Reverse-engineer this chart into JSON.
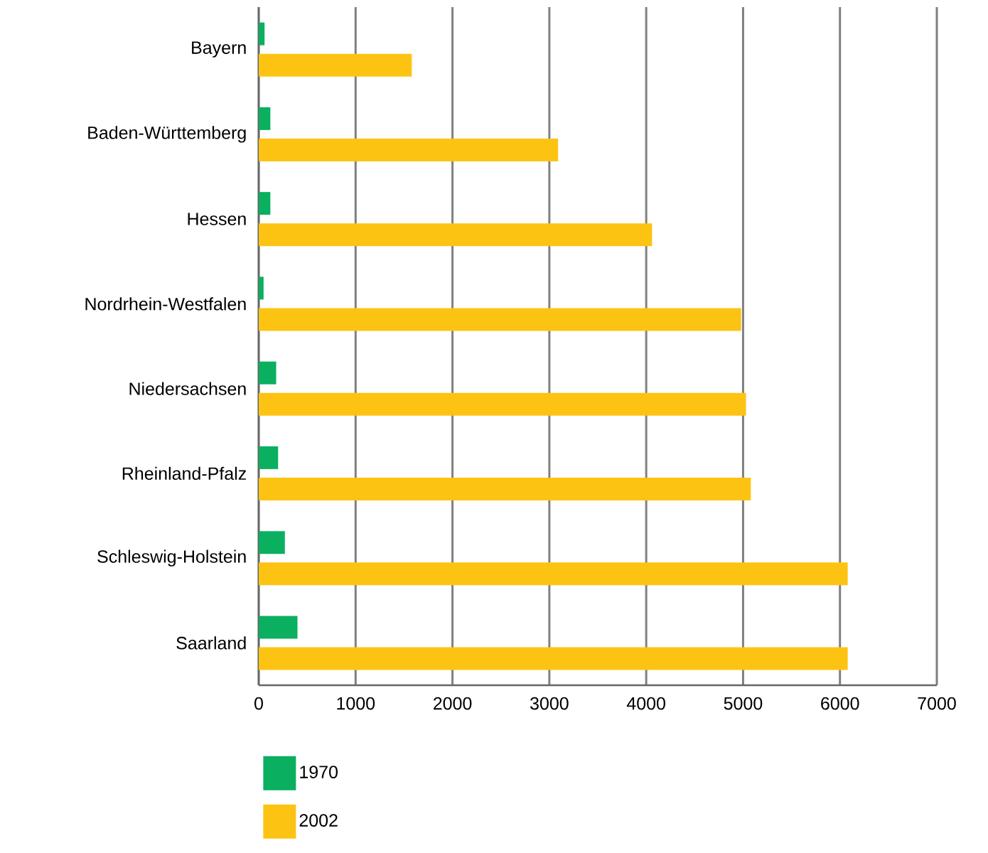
{
  "chart_data": {
    "type": "bar",
    "orientation": "horizontal",
    "categories": [
      "Bayern",
      "Baden-Württemberg",
      "Hessen",
      "Nordrhein-Westfalen",
      "Niedersachsen",
      "Rheinland-Pfalz",
      "Schleswig-Holstein",
      "Saarland"
    ],
    "series": [
      {
        "name": "1970",
        "color": "#0aaf5f",
        "values": [
          60,
          120,
          120,
          50,
          180,
          200,
          270,
          400
        ]
      },
      {
        "name": "2002",
        "color": "#fdc312",
        "values": [
          1580,
          3090,
          4060,
          4980,
          5030,
          5080,
          6080,
          6080
        ]
      }
    ],
    "xlim": [
      0,
      7000
    ],
    "xticks": [
      0,
      1000,
      2000,
      3000,
      4000,
      5000,
      6000,
      7000
    ],
    "grid": "x",
    "legend": "bottom left"
  }
}
